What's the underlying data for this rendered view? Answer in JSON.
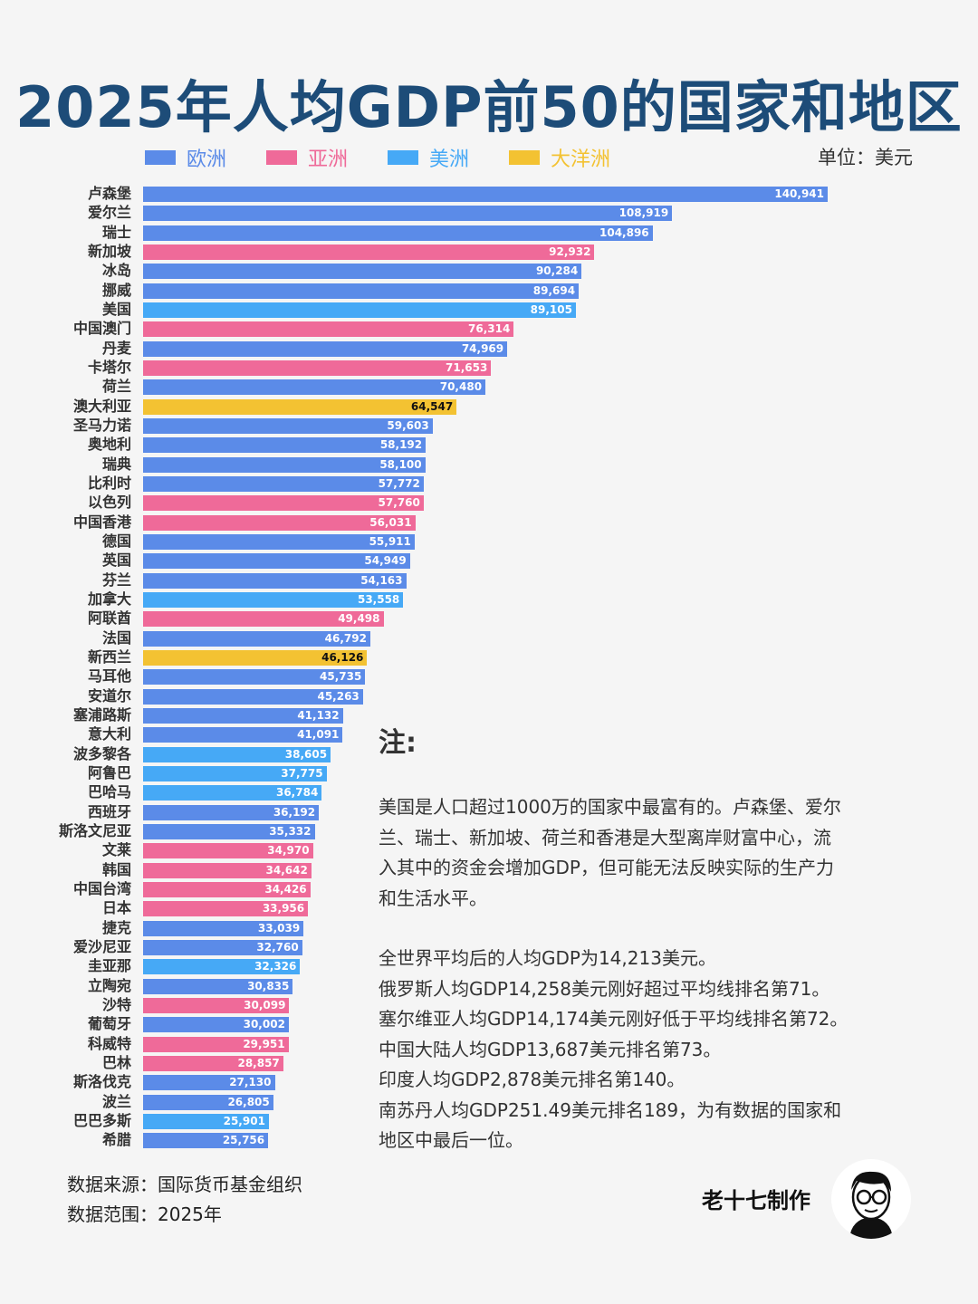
{
  "chart_data": {
    "type": "bar",
    "orientation": "horizontal",
    "title": "2025年人均GDP前50的国家和地区",
    "unit": "单位：美元",
    "legend": [
      {
        "name": "欧洲",
        "color": "#5b8be8"
      },
      {
        "name": "亚洲",
        "color": "#ef6a99"
      },
      {
        "name": "美洲",
        "color": "#46a9f6"
      },
      {
        "name": "大洋洲",
        "color": "#f3c232"
      }
    ],
    "xlim": [
      0,
      140941
    ],
    "categories": [
      "卢森堡",
      "爱尔兰",
      "瑞士",
      "新加坡",
      "冰岛",
      "挪威",
      "美国",
      "中国澳门",
      "丹麦",
      "卡塔尔",
      "荷兰",
      "澳大利亚",
      "圣马力诺",
      "奥地利",
      "瑞典",
      "比利时",
      "以色列",
      "中国香港",
      "德国",
      "英国",
      "芬兰",
      "加拿大",
      "阿联酋",
      "法国",
      "新西兰",
      "马耳他",
      "安道尔",
      "塞浦路斯",
      "意大利",
      "波多黎各",
      "阿鲁巴",
      "巴哈马",
      "西班牙",
      "斯洛文尼亚",
      "文莱",
      "韩国",
      "中国台湾",
      "日本",
      "捷克",
      "爱沙尼亚",
      "圭亚那",
      "立陶宛",
      "沙特",
      "葡萄牙",
      "科威特",
      "巴林",
      "斯洛伐克",
      "波兰",
      "巴巴多斯",
      "希腊"
    ],
    "values": [
      140941,
      108919,
      104896,
      92932,
      90284,
      89694,
      89105,
      76314,
      74969,
      71653,
      70480,
      64547,
      59603,
      58192,
      58100,
      57772,
      57760,
      56031,
      55911,
      54949,
      54163,
      53558,
      49498,
      46792,
      46126,
      45735,
      45263,
      41132,
      41091,
      38605,
      37775,
      36784,
      36192,
      35332,
      34970,
      34642,
      34426,
      33956,
      33039,
      32760,
      32326,
      30835,
      30099,
      30002,
      29951,
      28857,
      27130,
      26805,
      25901,
      25756
    ],
    "labels": [
      "140,941",
      "108,919",
      "104,896",
      "92,932",
      "90,284",
      "89,694",
      "89,105",
      "76,314",
      "74,969",
      "71,653",
      "70,480",
      "64,547",
      "59,603",
      "58,192",
      "58,100",
      "57,772",
      "57,760",
      "56,031",
      "55,911",
      "54,949",
      "54,163",
      "53,558",
      "49,498",
      "46,792",
      "46,126",
      "45,735",
      "45,263",
      "41,132",
      "41,091",
      "38,605",
      "37,775",
      "36,784",
      "36,192",
      "35,332",
      "34,970",
      "34,642",
      "34,426",
      "33,956",
      "33,039",
      "32,760",
      "32,326",
      "30,835",
      "30,099",
      "30,002",
      "29,951",
      "28,857",
      "27,130",
      "26,805",
      "25,901",
      "25,756"
    ],
    "region": [
      0,
      0,
      0,
      1,
      0,
      0,
      2,
      1,
      0,
      1,
      0,
      3,
      0,
      0,
      0,
      0,
      1,
      1,
      0,
      0,
      0,
      2,
      1,
      0,
      3,
      0,
      0,
      0,
      0,
      2,
      2,
      2,
      0,
      0,
      1,
      1,
      1,
      1,
      0,
      0,
      2,
      0,
      1,
      0,
      1,
      1,
      0,
      0,
      2,
      0
    ]
  },
  "notes": {
    "heading": "注:",
    "lines": [
      "美国是人口超过1000万的国家中最富有的。卢森堡、爱尔",
      "兰、瑞士、新加坡、荷兰和香港是大型离岸财富中心，流",
      "入其中的资金会增加GDP，但可能无法反映实际的生产力",
      "和生活水平。"
    ],
    "lines2": [
      "全世界平均后的人均GDP为14,213美元。",
      "俄罗斯人均GDP14,258美元刚好超过平均线排名第71。",
      "塞尔维亚人均GDP14,174美元刚好低于平均线排名第72。",
      "中国大陆人均GDP13,687美元排名第73。",
      "印度人均GDP2,878美元排名第140。",
      "南苏丹人均GDP251.49美元排名189，为有数据的国家和",
      "地区中最后一位。"
    ]
  },
  "footer": {
    "source": "数据来源：国际货币基金组织",
    "range": "数据范围：2025年",
    "author": "老十七制作"
  }
}
